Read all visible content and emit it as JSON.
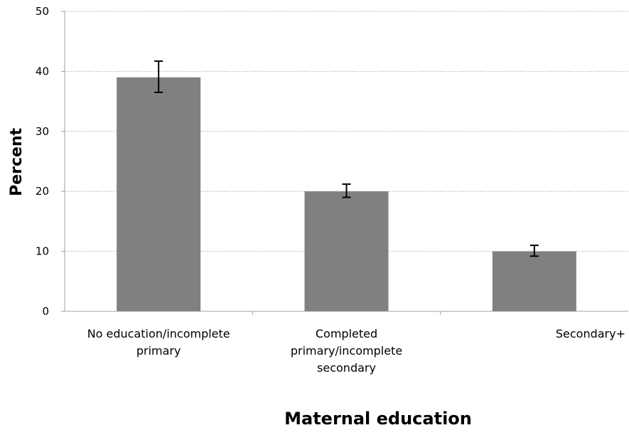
{
  "chart_data": {
    "type": "bar",
    "title": "",
    "xlabel": "Maternal education",
    "ylabel": "Percent",
    "categories": [
      [
        "No education/incomplete",
        "primary"
      ],
      [
        "Completed",
        "primary/incomplete",
        "secondary"
      ],
      [
        "Secondary+"
      ]
    ],
    "values": [
      39,
      20,
      10
    ],
    "error_low": [
      36.5,
      19,
      9.2
    ],
    "error_high": [
      41.7,
      21.2,
      11
    ],
    "ylim": [
      0,
      50
    ],
    "yticks": [
      "0",
      "10",
      "20",
      "30",
      "40",
      "50"
    ],
    "grid": true,
    "bar_color": "#808080"
  }
}
